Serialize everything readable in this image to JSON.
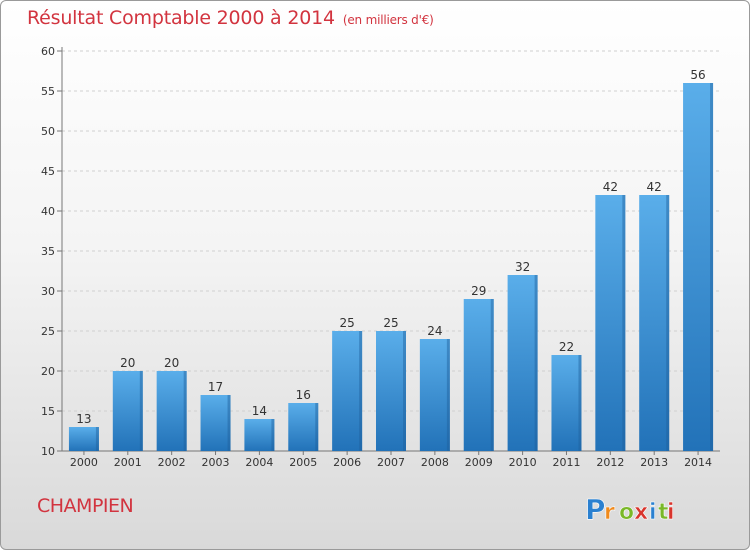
{
  "title": "Résultat Comptable 2000 à 2014",
  "unit": "(en milliers d'€)",
  "commune": "CHAMPIEN",
  "logo": {
    "letters": [
      "P",
      "r",
      "o",
      "x",
      "i",
      "t",
      "i"
    ]
  },
  "colors": {
    "bar": "#3d8fd6",
    "bar_light": "#5aaeea",
    "bar_dark": "#1f6fb5",
    "title": "#d2343f"
  },
  "chart_data": {
    "type": "bar",
    "title": "Résultat Comptable 2000 à 2014",
    "xlabel": "",
    "ylabel": "",
    "ylim": [
      10,
      60
    ],
    "yticks": [
      10,
      15,
      20,
      25,
      30,
      35,
      40,
      45,
      50,
      55,
      60
    ],
    "grid": true,
    "categories": [
      "2000",
      "2001",
      "2002",
      "2003",
      "2004",
      "2005",
      "2006",
      "2007",
      "2008",
      "2009",
      "2010",
      "2011",
      "2012",
      "2013",
      "2014"
    ],
    "values": [
      13,
      20,
      20,
      17,
      14,
      16,
      25,
      25,
      24,
      29,
      32,
      22,
      42,
      42,
      56
    ]
  }
}
